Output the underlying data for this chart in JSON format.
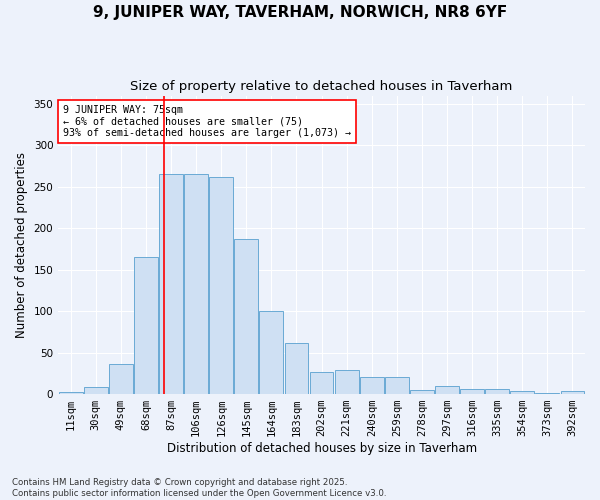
{
  "title": "9, JUNIPER WAY, TAVERHAM, NORWICH, NR8 6YF",
  "subtitle": "Size of property relative to detached houses in Taverham",
  "xlabel": "Distribution of detached houses by size in Taverham",
  "ylabel": "Number of detached properties",
  "bar_color": "#cfe0f3",
  "bar_edge_color": "#6aaad4",
  "categories": [
    "11sqm",
    "30sqm",
    "49sqm",
    "68sqm",
    "87sqm",
    "106sqm",
    "126sqm",
    "145sqm",
    "164sqm",
    "183sqm",
    "202sqm",
    "221sqm",
    "240sqm",
    "259sqm",
    "278sqm",
    "297sqm",
    "316sqm",
    "335sqm",
    "354sqm",
    "373sqm",
    "392sqm"
  ],
  "values": [
    2,
    9,
    36,
    165,
    265,
    265,
    262,
    187,
    100,
    62,
    27,
    29,
    20,
    20,
    5,
    10,
    6,
    6,
    4,
    1,
    4
  ],
  "ylim": [
    0,
    360
  ],
  "yticks": [
    0,
    50,
    100,
    150,
    200,
    250,
    300,
    350
  ],
  "property_label": "9 JUNIPER WAY: 75sqm",
  "annotation_line1": "← 6% of detached houses are smaller (75)",
  "annotation_line2": "93% of semi-detached houses are larger (1,073) →",
  "vline_position": 3.72,
  "footer_line1": "Contains HM Land Registry data © Crown copyright and database right 2025.",
  "footer_line2": "Contains public sector information licensed under the Open Government Licence v3.0.",
  "background_color": "#edf2fb",
  "grid_color": "#ffffff",
  "title_fontsize": 11,
  "subtitle_fontsize": 9.5,
  "axis_label_fontsize": 8.5,
  "tick_fontsize": 7.5,
  "footer_fontsize": 6.2
}
